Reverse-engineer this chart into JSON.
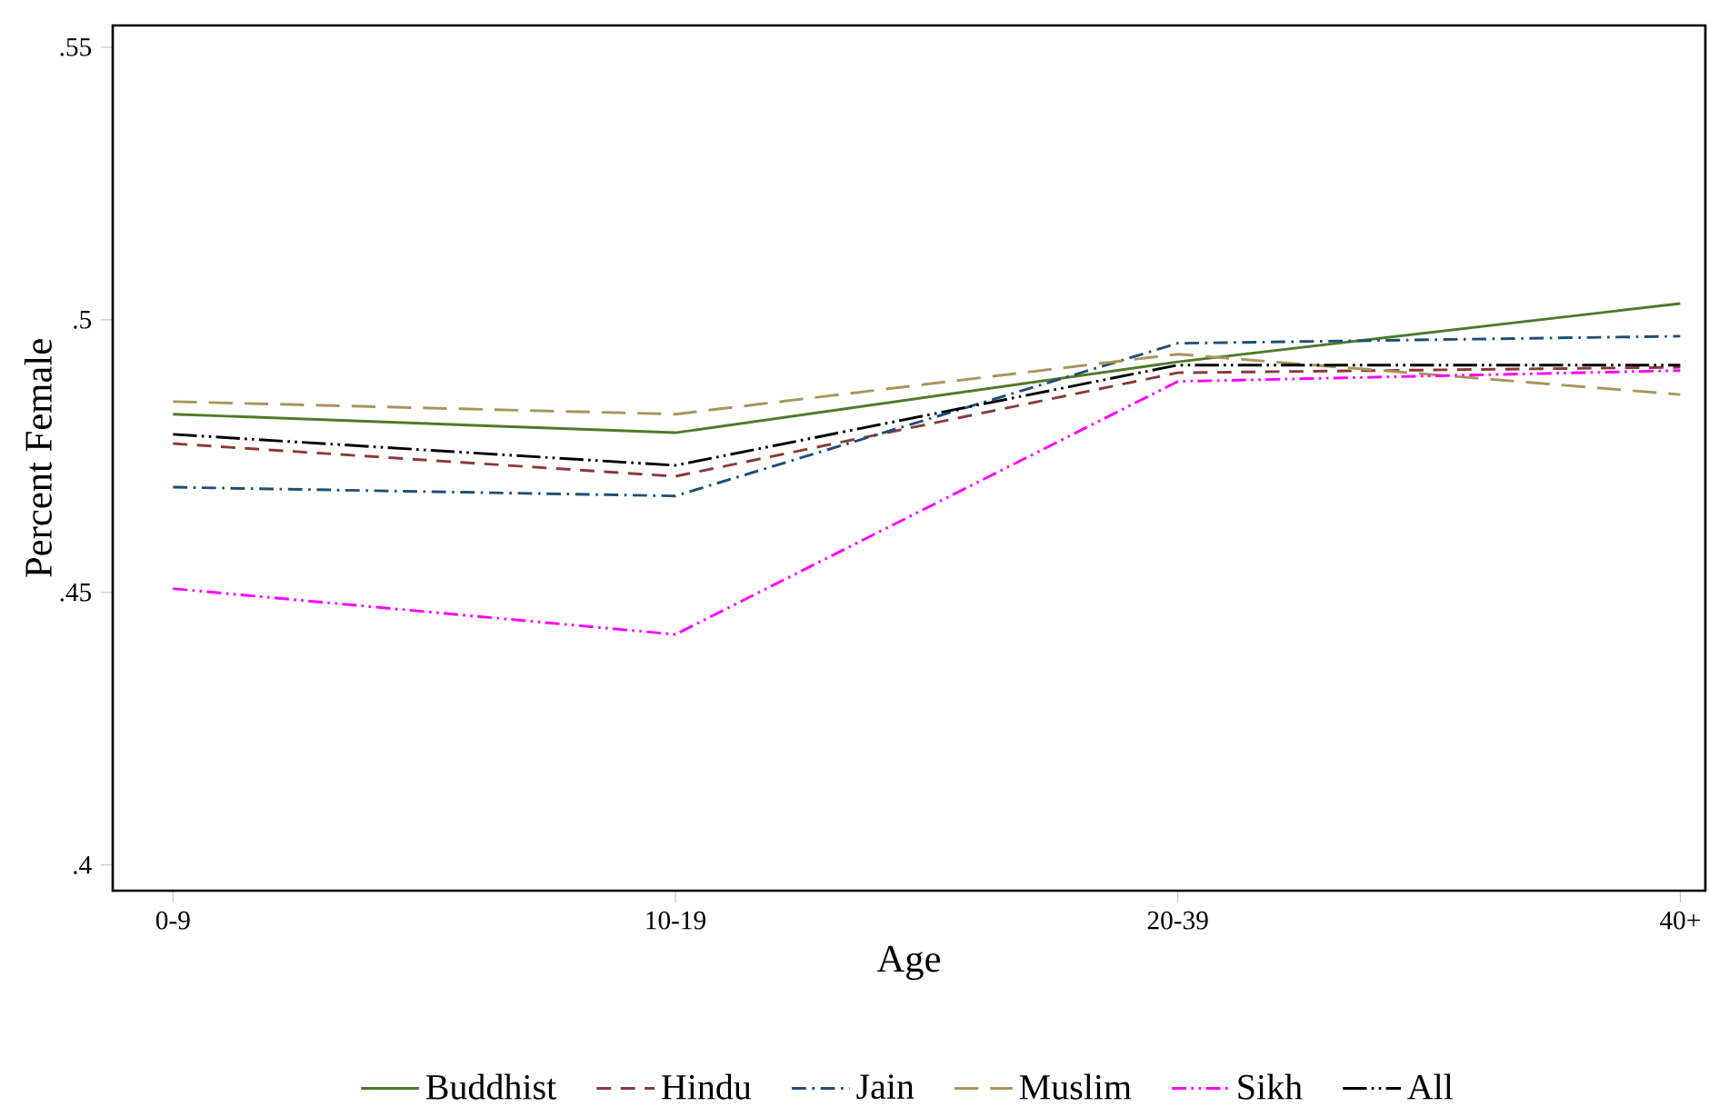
{
  "chart_data": {
    "type": "line",
    "xlabel": "Age",
    "ylabel": "Percent Female",
    "categories": [
      "0-9",
      "10-19",
      "20-39",
      "40+"
    ],
    "series": [
      {
        "name": "Buddhist",
        "color": "#4f7a28",
        "line_style": "solid",
        "values": [
          0.4827,
          0.4793,
          0.4923,
          0.503
        ]
      },
      {
        "name": "Hindu",
        "color": "#8b3a3a",
        "line_style": "dashed",
        "values": [
          0.4773,
          0.4713,
          0.4903,
          0.4913
        ]
      },
      {
        "name": "Jain",
        "color": "#1f4e79",
        "line_style": "dashed",
        "values": [
          0.4693,
          0.4677,
          0.4957,
          0.497
        ]
      },
      {
        "name": "Muslim",
        "color": "#a8965a",
        "line_style": "dashed",
        "values": [
          0.485,
          0.4827,
          0.4937,
          0.4863
        ]
      },
      {
        "name": "Sikh",
        "color": "#ff00ff",
        "line_style": "dashed",
        "values": [
          0.4507,
          0.4423,
          0.4887,
          0.4907
        ]
      },
      {
        "name": "All",
        "color": "#000000",
        "line_style": "dashed",
        "values": [
          0.479,
          0.4733,
          0.4917,
          0.4917
        ]
      }
    ],
    "ylim": [
      0.3953,
      0.554
    ],
    "yticks": [
      {
        "value": 0.4,
        "label": ".4"
      },
      {
        "value": 0.45,
        "label": ".45"
      },
      {
        "value": 0.5,
        "label": ".5"
      },
      {
        "value": 0.55,
        "label": ".55"
      }
    ],
    "grid": false,
    "legend": "bottom",
    "marker": "none"
  }
}
